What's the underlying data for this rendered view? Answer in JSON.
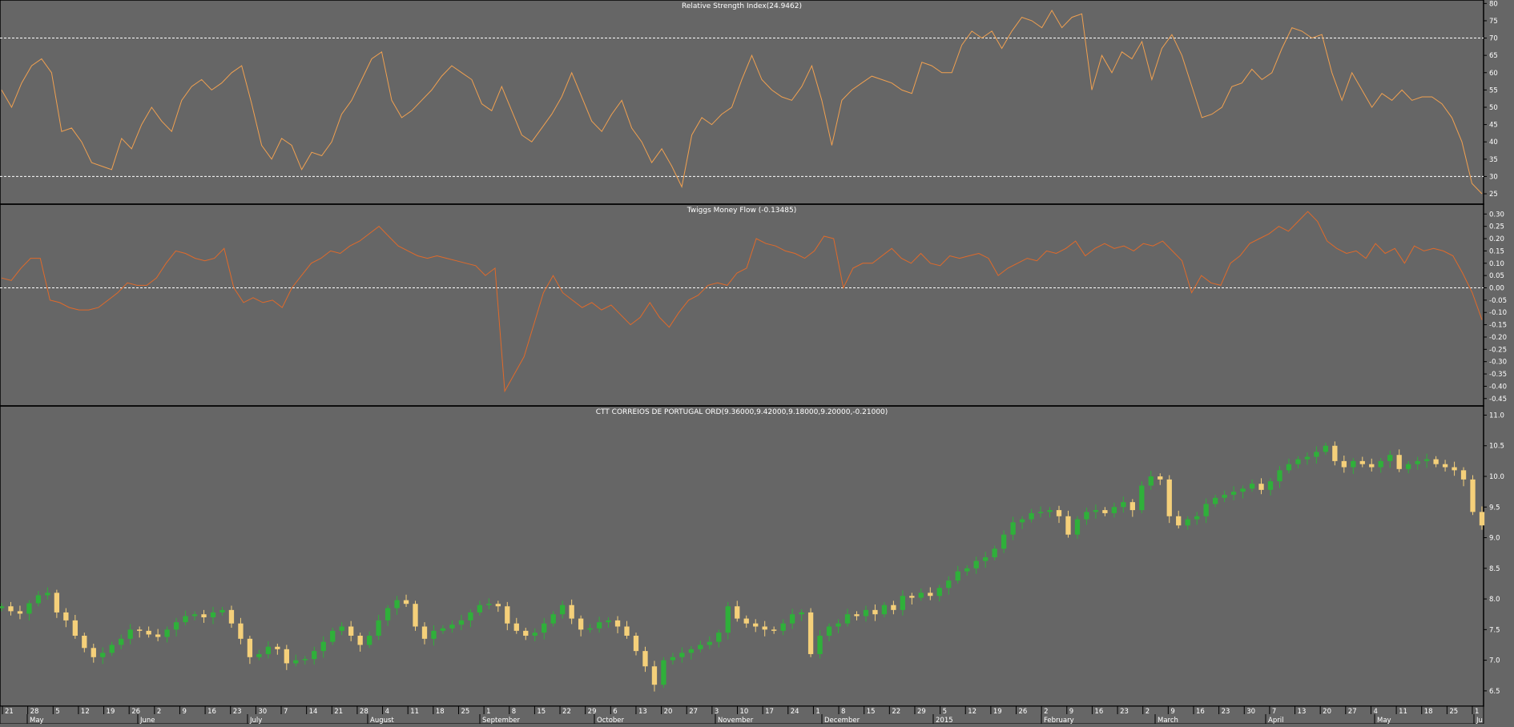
{
  "colors": {
    "background": "#666666",
    "border": "#000000",
    "text": "#ffffff",
    "rsi_line": "#f0a050",
    "mf_line": "#e06a2a",
    "candle_up": "#2fb03a",
    "candle_down": "#f5d07a",
    "reference_line": "#ffffff"
  },
  "chart_data": [
    {
      "type": "line",
      "title": "Relative Strength Index(24.9462)",
      "ylim": [
        22,
        81
      ],
      "yticks": [
        "80",
        "75",
        "70",
        "65",
        "60",
        "55",
        "50",
        "45",
        "40",
        "35",
        "30",
        "25"
      ],
      "reference_lines": [
        70,
        30
      ],
      "series": [
        {
          "values": [
            55,
            50,
            57,
            62,
            64,
            60,
            43,
            44,
            40,
            34,
            33,
            32,
            41,
            38,
            45,
            50,
            46,
            43,
            52,
            56,
            58,
            55,
            57,
            60,
            62,
            51,
            39,
            35,
            41,
            39,
            32,
            37,
            36,
            40,
            48,
            52,
            58,
            64,
            66,
            52,
            47,
            49,
            52,
            55,
            59,
            62,
            60,
            58,
            51,
            49,
            56,
            49,
            42,
            40,
            44,
            48,
            53,
            60,
            53,
            46,
            43,
            48,
            52,
            44,
            40,
            34,
            38,
            33,
            27,
            42,
            47,
            45,
            48,
            50,
            58,
            65,
            58,
            55,
            53,
            52,
            56,
            62,
            52,
            39,
            52,
            55,
            57,
            59,
            58,
            57,
            55,
            54,
            63,
            62,
            60,
            60,
            68,
            72,
            70,
            72,
            67,
            72,
            76,
            75,
            73,
            78,
            73,
            76,
            77,
            55,
            65,
            60,
            66,
            64,
            69,
            58,
            67,
            71,
            65,
            56,
            47,
            48,
            50,
            56,
            57,
            61,
            58,
            60,
            67,
            73,
            72,
            70,
            71,
            60,
            52,
            60,
            55,
            50,
            54,
            52,
            55,
            52,
            53,
            53,
            51,
            47,
            40,
            28,
            25
          ]
        }
      ]
    },
    {
      "type": "line",
      "title": "Twiggs Money Flow (-0.13485)",
      "ylim": [
        -0.48,
        0.34
      ],
      "yticks": [
        "0.30",
        "0.25",
        "0.20",
        "0.15",
        "0.10",
        "0.05",
        "0.00",
        "-0.05",
        "-0.10",
        "-0.15",
        "-0.20",
        "-0.25",
        "-0.30",
        "-0.35",
        "-0.40",
        "-0.45"
      ],
      "reference_lines": [
        0.0
      ],
      "series": [
        {
          "values": [
            0.04,
            0.03,
            0.08,
            0.12,
            0.12,
            -0.05,
            -0.06,
            -0.08,
            -0.09,
            -0.09,
            -0.08,
            -0.05,
            -0.02,
            0.02,
            0.01,
            0.01,
            0.04,
            0.1,
            0.15,
            0.14,
            0.12,
            0.11,
            0.12,
            0.16,
            0.0,
            -0.06,
            -0.04,
            -0.06,
            -0.05,
            -0.08,
            0.0,
            0.05,
            0.1,
            0.12,
            0.15,
            0.14,
            0.17,
            0.19,
            0.22,
            0.25,
            0.21,
            0.17,
            0.15,
            0.13,
            0.12,
            0.13,
            0.12,
            0.11,
            0.1,
            0.09,
            0.05,
            0.08,
            -0.42,
            -0.35,
            -0.28,
            -0.15,
            -0.02,
            0.05,
            -0.02,
            -0.05,
            -0.08,
            -0.06,
            -0.09,
            -0.07,
            -0.11,
            -0.15,
            -0.12,
            -0.06,
            -0.12,
            -0.16,
            -0.1,
            -0.05,
            -0.03,
            0.01,
            0.02,
            0.01,
            0.06,
            0.08,
            0.2,
            0.18,
            0.17,
            0.15,
            0.14,
            0.12,
            0.15,
            0.21,
            0.2,
            0.0,
            0.08,
            0.1,
            0.1,
            0.13,
            0.16,
            0.12,
            0.1,
            0.14,
            0.1,
            0.09,
            0.13,
            0.12,
            0.13,
            0.14,
            0.12,
            0.05,
            0.08,
            0.1,
            0.12,
            0.11,
            0.15,
            0.14,
            0.16,
            0.19,
            0.13,
            0.16,
            0.18,
            0.16,
            0.17,
            0.15,
            0.18,
            0.17,
            0.19,
            0.15,
            0.11,
            -0.02,
            0.05,
            0.02,
            0.01,
            0.1,
            0.13,
            0.18,
            0.2,
            0.22,
            0.25,
            0.23,
            0.27,
            0.31,
            0.27,
            0.19,
            0.16,
            0.14,
            0.15,
            0.12,
            0.18,
            0.14,
            0.16,
            0.1,
            0.17,
            0.15,
            0.16,
            0.15,
            0.13,
            0.06,
            -0.02,
            -0.13
          ]
        }
      ]
    },
    {
      "type": "candlestick",
      "title": "CTT CORREIOS DE PORTUGAL ORD(9.36000,9.42000,9.18000,9.20000,-0.21000)",
      "ylim": [
        6.25,
        11.15
      ],
      "yticks": [
        "11.0",
        "10.5",
        "10.0",
        "9.5",
        "9.0",
        "8.5",
        "8.0",
        "7.5",
        "7.0",
        "6.5"
      ],
      "close": [
        7.88,
        7.8,
        7.76,
        7.93,
        8.06,
        8.1,
        7.78,
        7.65,
        7.4,
        7.2,
        7.05,
        7.12,
        7.25,
        7.35,
        7.5,
        7.48,
        7.42,
        7.38,
        7.5,
        7.62,
        7.72,
        7.75,
        7.7,
        7.78,
        7.82,
        7.6,
        7.35,
        7.05,
        7.1,
        7.22,
        7.18,
        6.95,
        7.0,
        7.02,
        7.15,
        7.3,
        7.48,
        7.55,
        7.4,
        7.25,
        7.4,
        7.65,
        7.85,
        7.98,
        7.92,
        7.55,
        7.35,
        7.48,
        7.52,
        7.58,
        7.65,
        7.78,
        7.9,
        7.92,
        7.88,
        7.6,
        7.48,
        7.4,
        7.45,
        7.6,
        7.75,
        7.9,
        7.68,
        7.5,
        7.52,
        7.62,
        7.65,
        7.55,
        7.4,
        7.15,
        6.9,
        6.6,
        7.0,
        7.05,
        7.12,
        7.18,
        7.25,
        7.3,
        7.45,
        7.88,
        7.68,
        7.6,
        7.55,
        7.5,
        7.48,
        7.6,
        7.75,
        7.78,
        7.1,
        7.4,
        7.55,
        7.6,
        7.75,
        7.72,
        7.82,
        7.75,
        7.9,
        7.82,
        8.05,
        8.02,
        8.1,
        8.05,
        8.18,
        8.3,
        8.45,
        8.5,
        8.62,
        8.68,
        8.82,
        9.05,
        9.25,
        9.3,
        9.4,
        9.42,
        9.45,
        9.35,
        9.05,
        9.3,
        9.42,
        9.45,
        9.4,
        9.5,
        9.58,
        9.45,
        9.85,
        10.0,
        9.95,
        9.35,
        9.2,
        9.3,
        9.35,
        9.55,
        9.65,
        9.7,
        9.75,
        9.8,
        9.88,
        9.78,
        9.92,
        10.1,
        10.2,
        10.28,
        10.32,
        10.4,
        10.5,
        10.25,
        10.15,
        10.25,
        10.2,
        10.15,
        10.25,
        10.35,
        10.12,
        10.2,
        10.25,
        10.28,
        10.2,
        10.15,
        10.1,
        9.95,
        9.42,
        9.2
      ]
    }
  ],
  "x_axis": {
    "day_labels": [
      "21",
      "28",
      "5",
      "12",
      "19",
      "26",
      "2",
      "9",
      "16",
      "23",
      "30",
      "7",
      "14",
      "21",
      "28",
      "4",
      "11",
      "18",
      "25",
      "1",
      "8",
      "15",
      "22",
      "29",
      "6",
      "13",
      "20",
      "27",
      "3",
      "10",
      "17",
      "24",
      "1",
      "8",
      "15",
      "22",
      "29",
      "5",
      "12",
      "19",
      "26",
      "2",
      "9",
      "16",
      "23",
      "2",
      "9",
      "16",
      "23",
      "30",
      "7",
      "13",
      "20",
      "27",
      "4",
      "11",
      "18",
      "25",
      "1"
    ],
    "month_labels": [
      "May",
      "June",
      "July",
      "August",
      "September",
      "October",
      "November",
      "December",
      "2015",
      "February",
      "March",
      "April",
      "May",
      "Ju"
    ]
  }
}
